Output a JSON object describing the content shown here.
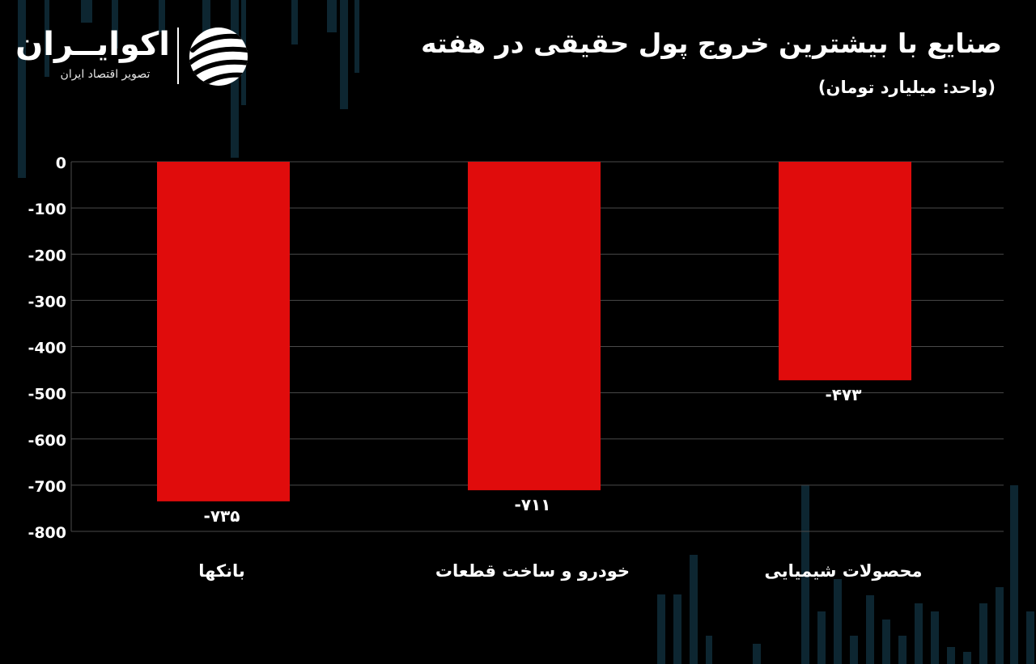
{
  "title": "صنایع با بیشترین خروج پول حقیقی در هفته",
  "subtitle": "(واحد: میلیارد تومان)",
  "logo": {
    "name": "اکوایــران",
    "tagline": "تصویر اقتصاد ایران",
    "mark_icon": "ekoiran-logo-icon"
  },
  "colors": {
    "background": "#000000",
    "bar": "#e00c0c",
    "grid": "#4a4a4a",
    "candle": "#0e2a36",
    "text": "#ffffff"
  },
  "chart_data": {
    "type": "bar",
    "categories": [
      "بانکها",
      "خودرو و ساخت قطعات",
      "محصولات شیمیایی"
    ],
    "values": [
      -735,
      -711,
      -473
    ],
    "value_labels": [
      "-۷۳۵",
      "-۷۱۱",
      "-۴۷۳"
    ],
    "ylim": [
      -800,
      0
    ],
    "y_ticks": [
      0,
      -100,
      -200,
      -300,
      -400,
      -500,
      -600,
      -700,
      -800
    ],
    "y_tick_labels": [
      "0",
      "-100",
      "-200",
      "-300",
      "-400",
      "-500",
      "-600",
      "-700",
      "-800"
    ],
    "grid": true,
    "legend": "none"
  }
}
